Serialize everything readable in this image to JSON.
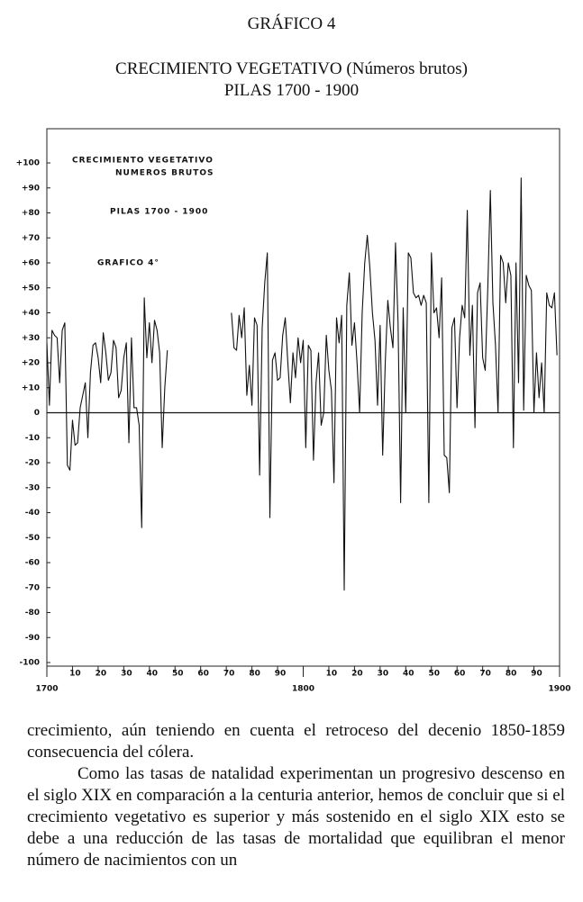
{
  "header": {
    "label": "GRÁFICO 4",
    "title": "CRECIMIENTO VEGETATIVO (Números brutos)",
    "subtitle": "PILAS 1700 - 1900"
  },
  "chart_data": {
    "type": "line",
    "annotations": [
      "CRECIMIENTO  VEGETATIVO",
      "NUMEROS  BRUTOS",
      "PILAS  1700 - 1900",
      "GRAFICO  4°"
    ],
    "x": [
      1700,
      1701,
      1702,
      1703,
      1704,
      1705,
      1706,
      1707,
      1708,
      1709,
      1710,
      1711,
      1712,
      1713,
      1714,
      1715,
      1716,
      1717,
      1718,
      1719,
      1720,
      1721,
      1722,
      1723,
      1724,
      1725,
      1726,
      1727,
      1728,
      1729,
      1730,
      1731,
      1732,
      1733,
      1734,
      1735,
      1736,
      1737,
      1738,
      1739,
      1740,
      1741,
      1742,
      1743,
      1744,
      1745,
      1746,
      1747,
      1748,
      1749,
      1750,
      1751,
      1752,
      1753,
      1754,
      1755,
      1756,
      1757,
      1758,
      1759,
      1760,
      1761,
      1762,
      1763,
      1764,
      1765,
      1766,
      1767,
      1768,
      1769,
      1770,
      1771,
      1772,
      1773,
      1774,
      1775,
      1776,
      1777,
      1778,
      1779,
      1780,
      1781,
      1782,
      1783,
      1784,
      1785,
      1786,
      1787,
      1788,
      1789,
      1790,
      1791,
      1792,
      1793,
      1794,
      1795,
      1796,
      1797,
      1798,
      1799,
      1800,
      1801,
      1802,
      1803,
      1804,
      1805,
      1806,
      1807,
      1808,
      1809,
      1810,
      1811,
      1812,
      1813,
      1814,
      1815,
      1816,
      1817,
      1818,
      1819,
      1820,
      1821,
      1822,
      1823,
      1824,
      1825,
      1826,
      1827,
      1828,
      1829,
      1830,
      1831,
      1832,
      1833,
      1834,
      1835,
      1836,
      1837,
      1838,
      1839,
      1840,
      1841,
      1842,
      1843,
      1844,
      1845,
      1846,
      1847,
      1848,
      1849,
      1850,
      1851,
      1852,
      1853,
      1854,
      1855,
      1856,
      1857,
      1858,
      1859,
      1860,
      1861,
      1862,
      1863,
      1864,
      1865,
      1866,
      1867,
      1868,
      1869,
      1870,
      1871,
      1872,
      1873,
      1874,
      1875,
      1876,
      1877,
      1878,
      1879,
      1880,
      1881,
      1882,
      1883,
      1884,
      1885,
      1886,
      1887,
      1888,
      1889,
      1890,
      1891,
      1892,
      1893,
      1894,
      1895,
      1896,
      1897,
      1898,
      1899
    ],
    "series": [
      {
        "color": "#111111",
        "values": [
          28,
          3,
          33,
          31,
          30,
          12,
          33,
          36,
          -21,
          -23,
          -3,
          -13,
          -12,
          2,
          7,
          12,
          -10,
          16,
          27,
          28,
          22,
          12,
          32,
          24,
          13,
          16,
          29,
          26,
          6,
          9,
          22,
          28,
          -12,
          30,
          2,
          2,
          -5,
          -46,
          46,
          22,
          36,
          20,
          37,
          33,
          24,
          -14,
          10,
          25,
          null,
          null,
          null,
          null,
          null,
          null,
          null,
          null,
          null,
          null,
          null,
          null,
          null,
          null,
          null,
          null,
          null,
          null,
          null,
          null,
          null,
          null,
          null,
          null,
          40,
          26,
          25,
          39,
          30,
          42,
          7,
          19,
          3,
          38,
          35,
          -25,
          34,
          52,
          64,
          -42,
          21,
          24,
          13,
          14,
          31,
          38,
          20,
          4,
          24,
          14,
          30,
          20,
          29,
          -14,
          27,
          25,
          -19,
          12,
          24,
          -5,
          0,
          31,
          17,
          9,
          -28,
          38,
          28,
          39,
          -71,
          43,
          56,
          27,
          36,
          20,
          0,
          40,
          60,
          71,
          58,
          40,
          29,
          3,
          35,
          -17,
          20,
          45,
          34,
          26,
          68,
          36,
          -36,
          42,
          0,
          64,
          62,
          48,
          46,
          47,
          43,
          47,
          44,
          -36,
          64,
          40,
          42,
          30,
          54,
          -17,
          -18,
          -32,
          34,
          38,
          2,
          30,
          43,
          38,
          81,
          23,
          43,
          -6,
          48,
          52,
          22,
          17,
          50,
          89,
          44,
          27,
          0,
          63,
          60,
          44,
          60,
          55,
          -14,
          60,
          12,
          94,
          1,
          55,
          51,
          49,
          0,
          24,
          6,
          20,
          0,
          48,
          43,
          42,
          48,
          23
        ]
      }
    ],
    "xlim": [
      1700,
      1900
    ],
    "xticks": [
      1700,
      {
        "value": 1710,
        "label": "10"
      },
      {
        "value": 1720,
        "label": "20"
      },
      {
        "value": 1730,
        "label": "30"
      },
      {
        "value": 1740,
        "label": "40"
      },
      {
        "value": 1750,
        "label": "50"
      },
      {
        "value": 1760,
        "label": "60"
      },
      {
        "value": 1770,
        "label": "70"
      },
      {
        "value": 1780,
        "label": "80"
      },
      {
        "value": 1790,
        "label": "90"
      },
      1800,
      {
        "value": 1810,
        "label": "10"
      },
      {
        "value": 1820,
        "label": "20"
      },
      {
        "value": 1830,
        "label": "30"
      },
      {
        "value": 1840,
        "label": "40"
      },
      {
        "value": 1850,
        "label": "50"
      },
      {
        "value": 1860,
        "label": "60"
      },
      {
        "value": 1870,
        "label": "70"
      },
      {
        "value": 1880,
        "label": "80"
      },
      {
        "value": 1890,
        "label": "90"
      },
      1900
    ],
    "ylim": [
      -100,
      100
    ],
    "yticks": [
      {
        "value": 100,
        "label": "+100"
      },
      {
        "value": 90,
        "label": "+90"
      },
      {
        "value": 80,
        "label": "+80"
      },
      {
        "value": 70,
        "label": "+70"
      },
      {
        "value": 60,
        "label": "+60"
      },
      {
        "value": 50,
        "label": "+50"
      },
      {
        "value": 40,
        "label": "+40"
      },
      {
        "value": 30,
        "label": "+30"
      },
      {
        "value": 20,
        "label": "+20"
      },
      {
        "value": 10,
        "label": "+10"
      },
      0,
      -10,
      -20,
      -30,
      -40,
      -50,
      -60,
      -70,
      -80,
      -90,
      -100
    ],
    "zero_line": true
  },
  "body": {
    "paragraphs": [
      "crecimiento, aún teniendo en cuenta el retroceso del decenio 1850-1859 consecuencia del cólera.",
      "Como las tasas de natalidad experimentan un progresivo descenso en el siglo XIX en comparación a la centuria anterior, hemos de concluir que si el crecimiento vegetativo es superior y más sostenido en el siglo XIX esto se debe a una reducción de las tasas de mortalidad que equilibran el menor número de nacimientos con un"
    ]
  }
}
